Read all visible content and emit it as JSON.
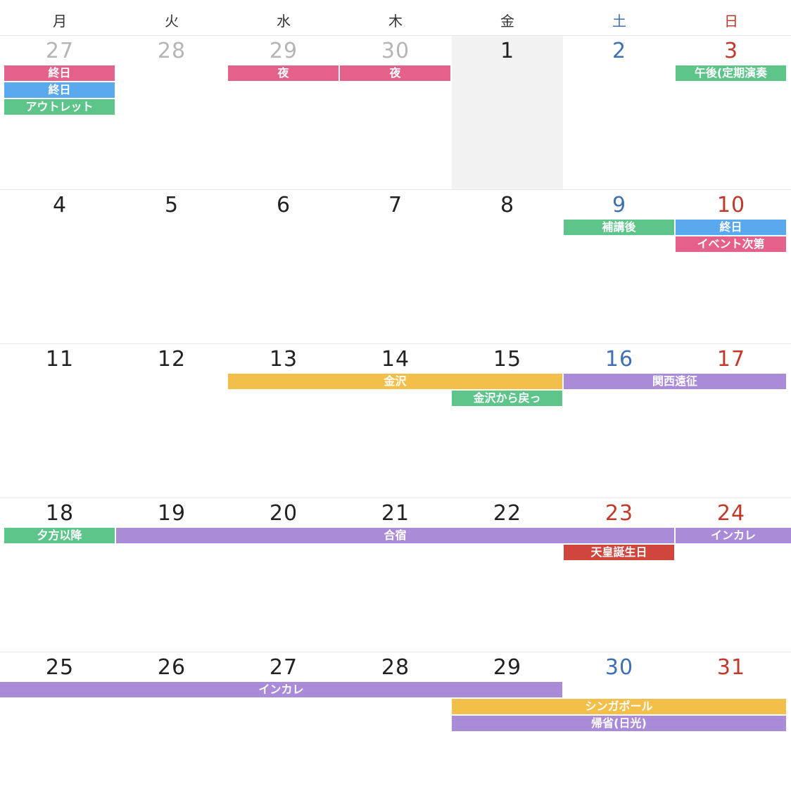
{
  "weekdays": [
    "月",
    "火",
    "水",
    "木",
    "金",
    "土",
    "日"
  ],
  "weeks": [
    {
      "days": [
        "27",
        "28",
        "29",
        "30",
        "1",
        "2",
        "3"
      ],
      "events": [
        {
          "title": "終日",
          "color": "#e3618a"
        },
        {
          "title": "終日",
          "color": "#5aa9ef"
        },
        {
          "title": "アウトレット",
          "color": "#5dc48a"
        },
        {
          "title": "夜",
          "color": "#e3618a"
        },
        {
          "title": "夜",
          "color": "#e3618a"
        },
        {
          "title": "午後(定期演奏",
          "color": "#5dc48a"
        }
      ]
    },
    {
      "days": [
        "4",
        "5",
        "6",
        "7",
        "8",
        "9",
        "10"
      ],
      "events": [
        {
          "title": "補講後",
          "color": "#5dc48a"
        },
        {
          "title": "終日",
          "color": "#5aa9ef"
        },
        {
          "title": "イベント次第",
          "color": "#e3618a"
        }
      ]
    },
    {
      "days": [
        "11",
        "12",
        "13",
        "14",
        "15",
        "16",
        "17"
      ],
      "events": [
        {
          "title": "金沢",
          "color": "#f2c04a"
        },
        {
          "title": "関西遠征",
          "color": "#a98bd8"
        },
        {
          "title": "金沢から戻っ",
          "color": "#5dc48a"
        }
      ]
    },
    {
      "days": [
        "18",
        "19",
        "20",
        "21",
        "22",
        "23",
        "24"
      ],
      "events": [
        {
          "title": "夕方以降",
          "color": "#5dc48a"
        },
        {
          "title": "合宿",
          "color": "#a98bd8"
        },
        {
          "title": "インカレ",
          "color": "#a98bd8"
        },
        {
          "title": "天皇誕生日",
          "color": "#d0463d"
        }
      ]
    },
    {
      "days": [
        "25",
        "26",
        "27",
        "28",
        "29",
        "30",
        "31"
      ],
      "events": [
        {
          "title": "インカレ",
          "color": "#a98bd8"
        },
        {
          "title": "シンガポール",
          "color": "#f2c04a"
        },
        {
          "title": "帰省(日光)",
          "color": "#a98bd8"
        }
      ]
    }
  ]
}
